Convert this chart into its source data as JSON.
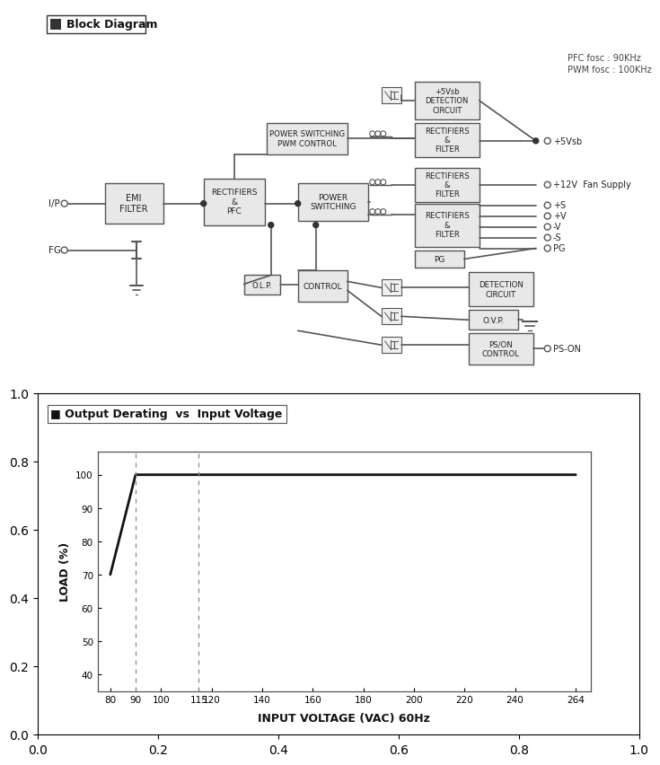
{
  "title_block": "Block Diagram",
  "title_chart": "Output Derating  vs  Input Voltage",
  "pfc_fosc": "PFC fosc : 90KHz",
  "pwm_fosc": "PWM fosc : 100KHz",
  "xlabel": "INPUT VOLTAGE (VAC) 60Hz",
  "ylabel": "LOAD (%)",
  "x_data": [
    80,
    90,
    115,
    264
  ],
  "y_data": [
    70,
    100,
    100,
    100
  ],
  "x_ticks": [
    80,
    90,
    100,
    115,
    120,
    140,
    160,
    180,
    200,
    220,
    240,
    264
  ],
  "y_ticks": [
    40,
    50,
    60,
    70,
    80,
    90,
    100
  ],
  "xlim": [
    75,
    270
  ],
  "ylim": [
    35,
    107
  ],
  "dashed_x1": 90,
  "dashed_x2": 115,
  "bg_color": "#ffffff",
  "line_color": "#000000",
  "box_color": "#d0d0d0",
  "box_edge": "#555555"
}
